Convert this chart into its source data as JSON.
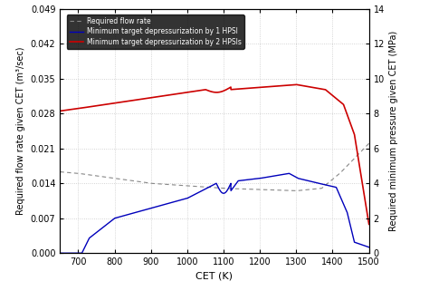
{
  "title": "",
  "xlabel": "CET (K)",
  "ylabel_left": "Required flow rate given CET (m³/sec)",
  "ylabel_right": "Required minimum pressure given CET (MPa)",
  "xlim": [
    650,
    1500
  ],
  "ylim_left": [
    0.0,
    0.049
  ],
  "ylim_right": [
    0,
    14
  ],
  "xticks": [
    700,
    800,
    900,
    1000,
    1100,
    1200,
    1300,
    1400,
    1500
  ],
  "yticks_left": [
    0.0,
    0.007,
    0.014,
    0.021,
    0.028,
    0.035,
    0.042,
    0.049
  ],
  "yticks_right": [
    0,
    2,
    4,
    6,
    8,
    10,
    12,
    14
  ],
  "legend_labels": [
    "Required flow rate",
    "Minimum target depressurization by 1 HPSI",
    "Minimum target depressurization by 2 HPSIs"
  ],
  "line_colors": [
    "#888888",
    "#0000bb",
    "#cc0000"
  ],
  "bg_color": "#ffffff",
  "grid_color": "#bbbbbb"
}
